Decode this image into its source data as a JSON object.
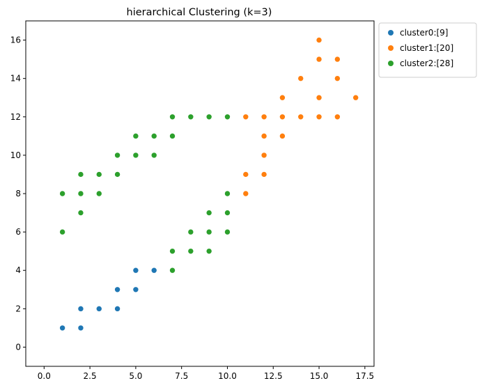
{
  "chart_data": {
    "type": "scatter",
    "title": "hierarchical Clustering (k=3)",
    "xlabel": "",
    "ylabel": "",
    "xlim": [
      -1,
      18
    ],
    "ylim": [
      -1,
      17
    ],
    "xticks": [
      0.0,
      2.5,
      5.0,
      7.5,
      10.0,
      12.5,
      15.0,
      17.5
    ],
    "xtick_labels": [
      "0.0",
      "2.5",
      "5.0",
      "7.5",
      "10.0",
      "12.5",
      "15.0",
      "17.5"
    ],
    "yticks": [
      0,
      2,
      4,
      6,
      8,
      10,
      12,
      14,
      16
    ],
    "ytick_labels": [
      "0",
      "2",
      "4",
      "6",
      "8",
      "10",
      "12",
      "14",
      "16"
    ],
    "grid": false,
    "legend_position": "outside-top-right",
    "series": [
      {
        "name": "cluster0:[9]",
        "color": "#1f77b4",
        "points": [
          [
            1,
            1
          ],
          [
            2,
            1
          ],
          [
            2,
            2
          ],
          [
            3,
            2
          ],
          [
            4,
            2
          ],
          [
            4,
            3
          ],
          [
            5,
            3
          ],
          [
            5,
            4
          ],
          [
            6,
            4
          ]
        ]
      },
      {
        "name": "cluster1:[20]",
        "color": "#ff7f0e",
        "points": [
          [
            11,
            8
          ],
          [
            11,
            9
          ],
          [
            12,
            9
          ],
          [
            12,
            10
          ],
          [
            12,
            11
          ],
          [
            13,
            11
          ],
          [
            11,
            12
          ],
          [
            12,
            12
          ],
          [
            13,
            12
          ],
          [
            14,
            12
          ],
          [
            15,
            12
          ],
          [
            16,
            12
          ],
          [
            13,
            13
          ],
          [
            15,
            13
          ],
          [
            17,
            13
          ],
          [
            14,
            14
          ],
          [
            16,
            14
          ],
          [
            15,
            15
          ],
          [
            16,
            15
          ],
          [
            15,
            16
          ]
        ]
      },
      {
        "name": "cluster2:[28]",
        "color": "#2ca02c",
        "points": [
          [
            1,
            6
          ],
          [
            1,
            8
          ],
          [
            2,
            7
          ],
          [
            2,
            8
          ],
          [
            2,
            9
          ],
          [
            3,
            8
          ],
          [
            3,
            9
          ],
          [
            4,
            9
          ],
          [
            4,
            10
          ],
          [
            5,
            10
          ],
          [
            5,
            11
          ],
          [
            6,
            10
          ],
          [
            6,
            11
          ],
          [
            7,
            11
          ],
          [
            7,
            12
          ],
          [
            8,
            12
          ],
          [
            9,
            12
          ],
          [
            10,
            12
          ],
          [
            7,
            4
          ],
          [
            7,
            5
          ],
          [
            8,
            5
          ],
          [
            9,
            5
          ],
          [
            8,
            6
          ],
          [
            9,
            6
          ],
          [
            10,
            6
          ],
          [
            9,
            7
          ],
          [
            10,
            7
          ],
          [
            10,
            8
          ]
        ]
      }
    ]
  }
}
